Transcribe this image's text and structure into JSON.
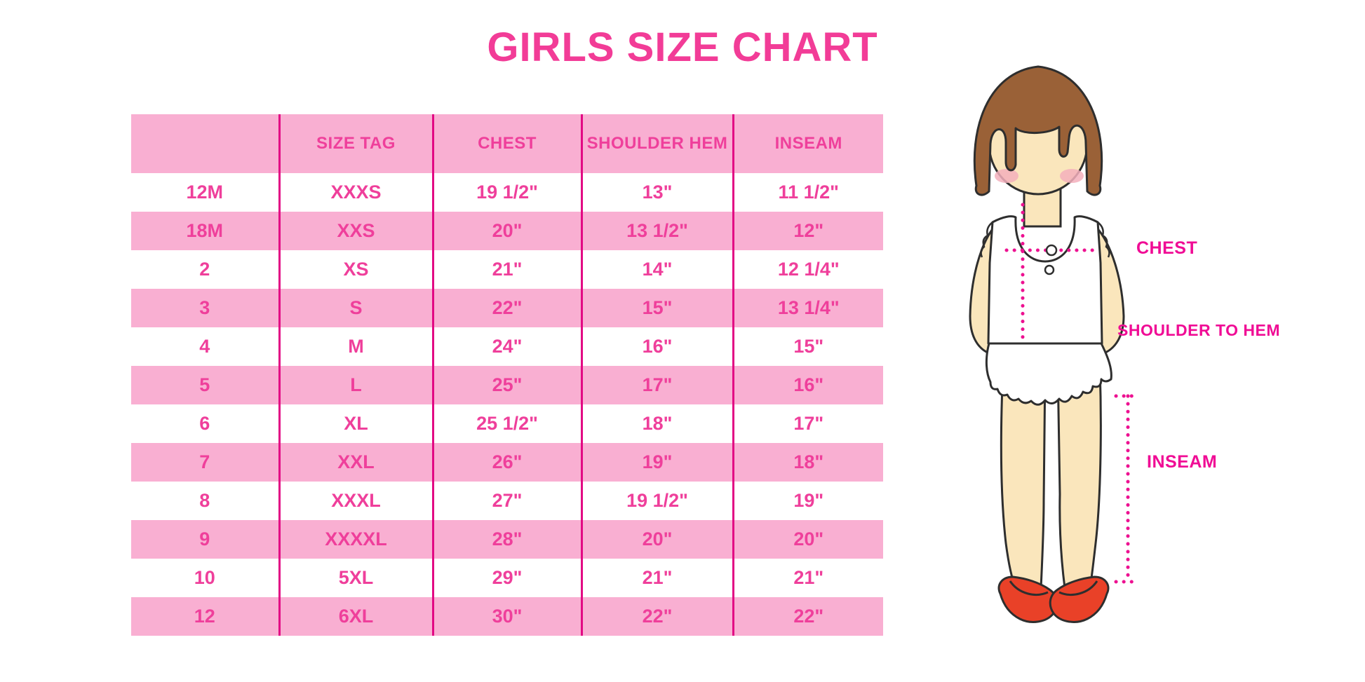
{
  "title": "GIRLS SIZE CHART",
  "chart_data": {
    "type": "table",
    "title": "GIRLS SIZE CHART",
    "columns": [
      "",
      "SIZE TAG",
      "CHEST",
      "SHOULDER HEM",
      "INSEAM"
    ],
    "rows": [
      [
        "12M",
        "XXXS",
        "19 1/2\"",
        "13\"",
        "11 1/2\""
      ],
      [
        "18M",
        "XXS",
        "20\"",
        "13 1/2\"",
        "12\""
      ],
      [
        "2",
        "XS",
        "21\"",
        "14\"",
        "12 1/4\""
      ],
      [
        "3",
        "S",
        "22\"",
        "15\"",
        "13 1/4\""
      ],
      [
        "4",
        "M",
        "24\"",
        "16\"",
        "15\""
      ],
      [
        "5",
        "L",
        "25\"",
        "17\"",
        "16\""
      ],
      [
        "6",
        "XL",
        "25 1/2\"",
        "18\"",
        "17\""
      ],
      [
        "7",
        "XXL",
        "26\"",
        "19\"",
        "18\""
      ],
      [
        "8",
        "XXXL",
        "27\"",
        "19 1/2\"",
        "19\""
      ],
      [
        "9",
        "XXXXL",
        "28\"",
        "20\"",
        "20\""
      ],
      [
        "10",
        "5XL",
        "29\"",
        "21\"",
        "21\""
      ],
      [
        "12",
        "6XL",
        "30\"",
        "22\"",
        "22\""
      ]
    ],
    "layout": {
      "stripe_pattern": "header pink, then alternating white/pink rows",
      "column_separators": true,
      "horizontal_lines": false
    }
  },
  "figure": {
    "chest_label": "CHEST",
    "shoulder_label": "SHOULDER TO HEM",
    "inseam_label": "INSEAM"
  },
  "colors": {
    "title_pink": "#F23C97",
    "row_pink": "#F9AFD2",
    "separator_magenta": "#E20984",
    "table_text_pink": "#EF3F9B",
    "label_magenta": "#F00C95",
    "dotted_line_magenta": "#ED1191",
    "skin": "#FAE6BC",
    "hair_brown": "#9A6137",
    "blush": "#F3AFBC",
    "shoe_red": "#E94128",
    "outline": "#2E2E2E"
  }
}
